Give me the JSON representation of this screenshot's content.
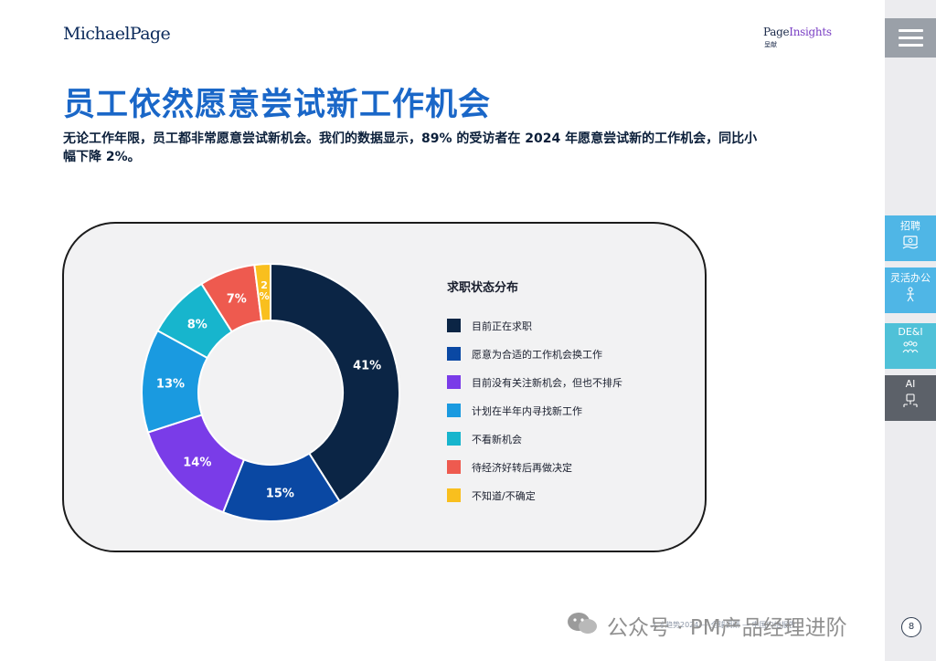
{
  "brand": {
    "logo": "MichaelPage",
    "insights_a": "Page",
    "insights_b": "Insights",
    "insights_sub": "呈献"
  },
  "header": {
    "title": "员工依然愿意尝试新工作机会",
    "subtitle": "无论工作年限，员工都非常愿意尝试新机会。我们的数据显示，89% 的受访者在 2024 年愿意尝试新的工作机会，同比小幅下降 2%。"
  },
  "chart_data": {
    "type": "pie",
    "variant": "donut",
    "title": "求职状态分布",
    "legend_position": "right",
    "categories": [
      "目前正在求职",
      "愿意为合适的工作机会换工作",
      "目前没有关注新机会，但也不排斥",
      "计划在半年内寻找新工作",
      "不看新机会",
      "待经济好转后再做决定",
      "不知道/不确定"
    ],
    "values": [
      41,
      15,
      14,
      13,
      8,
      7,
      2
    ],
    "value_labels": [
      "41%",
      "15%",
      "14%",
      "13%",
      "8%",
      "7%",
      "2%"
    ],
    "colors": [
      "#0b2545",
      "#0a48a3",
      "#7a3ce8",
      "#1a9ae0",
      "#17b5cd",
      "#ee5a4f",
      "#f9bf1e"
    ]
  },
  "sidebar": {
    "tabs": [
      {
        "label": "招聘",
        "icon": "recruit-icon",
        "color": "#4fb6e6"
      },
      {
        "label": "灵活办公",
        "icon": "flexible-work-icon",
        "color": "#4fb6e6"
      },
      {
        "label": "DE&I",
        "icon": "dei-icon",
        "color": "#4fc1d8"
      },
      {
        "label": "AI",
        "icon": "ai-icon",
        "color": "#5c6169"
      }
    ]
  },
  "footer": {
    "text": "人才趋势2024 — 全球调研 — 中国内地报告",
    "watermark": "公众号 · PM产品经理进阶",
    "page": "8"
  }
}
